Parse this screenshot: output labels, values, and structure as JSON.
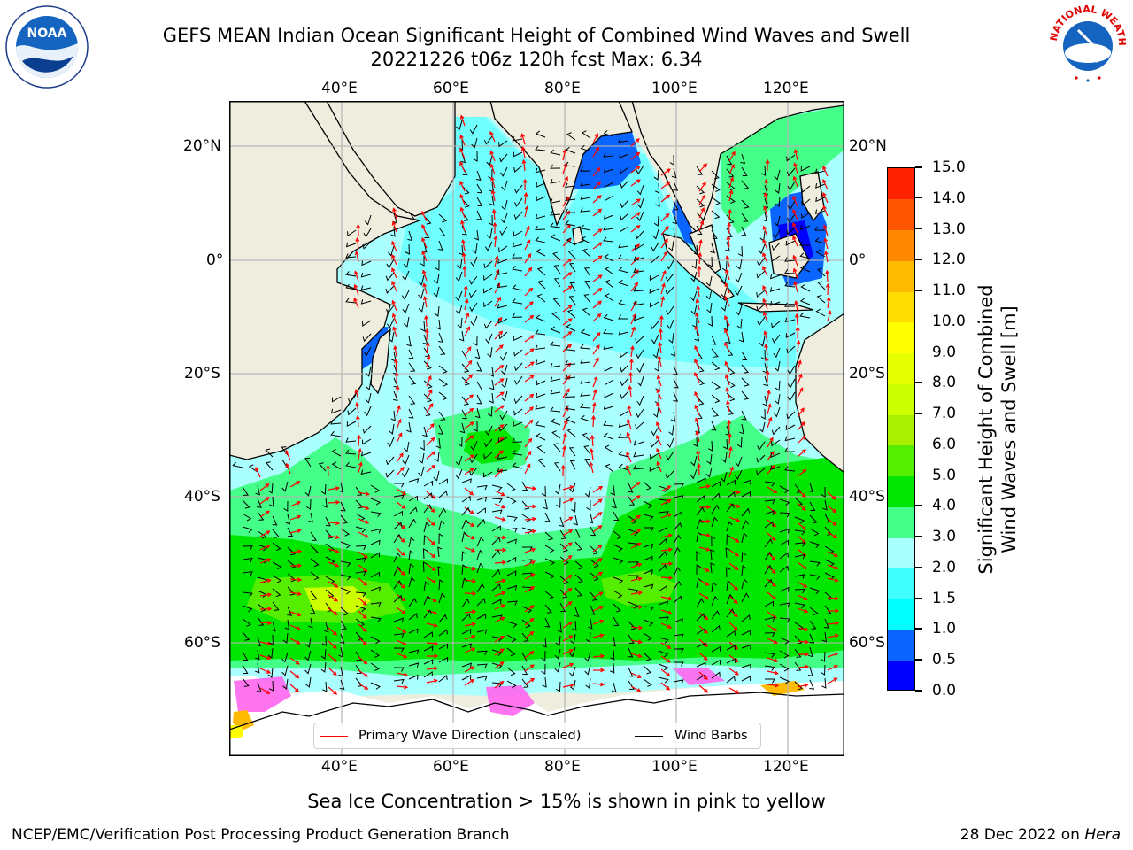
{
  "title": {
    "line1": "GEFS MEAN Indian Ocean Significant Height of Combined Wind Waves and Swell",
    "line2": "20221226 t06z 120h fcst   Max: 6.34"
  },
  "map": {
    "lon_ticks": [
      "40°E",
      "60°E",
      "80°E",
      "100°E",
      "120°E"
    ],
    "lat_ticks": [
      "20°N",
      "0°",
      "20°S",
      "40°S",
      "60°S"
    ],
    "colors": {
      "land": "#efedde",
      "ice_white": "#ffffff",
      "gridline": "#b4b4b4",
      "coastline": "#000000"
    }
  },
  "colorbar": {
    "label": "Significant Height of Combined Wind Waves and Swell [m]",
    "label_line1": "Significant Height of Combined",
    "label_line2": "Wind Waves and Swell [m]",
    "levels": [
      "0.0",
      "0.5",
      "1.0",
      "1.5",
      "2.0",
      "3.0",
      "4.0",
      "5.0",
      "6.0",
      "7.0",
      "8.0",
      "9.0",
      "10.0",
      "11.0",
      "12.0",
      "13.0",
      "14.0",
      "15.0"
    ],
    "colors": [
      "#0000ff",
      "#0a64ff",
      "#00ffff",
      "#40ffff",
      "#aaffff",
      "#44ff88",
      "#00e600",
      "#55ee00",
      "#aaee00",
      "#ccff00",
      "#e6ff00",
      "#ffff00",
      "#ffdd00",
      "#ffbb00",
      "#ff8800",
      "#ff5500",
      "#ff2200"
    ]
  },
  "legend": {
    "wave_label": "Primary Wave Direction (unscaled)",
    "wave_color": "#ff0000",
    "wind_label": "Wind Barbs",
    "wind_color": "#000000"
  },
  "ice_note": "Sea Ice Concentration > 15% is shown in pink to yellow",
  "footer": {
    "left": "NCEP/EMC/Verification Post Processing Product Generation Branch",
    "date": "28 Dec 2022 on ",
    "host": "Hera"
  },
  "logos": {
    "noaa_text": "NOAA",
    "nws_text": "NATIONAL WEATHER SERVICE"
  }
}
